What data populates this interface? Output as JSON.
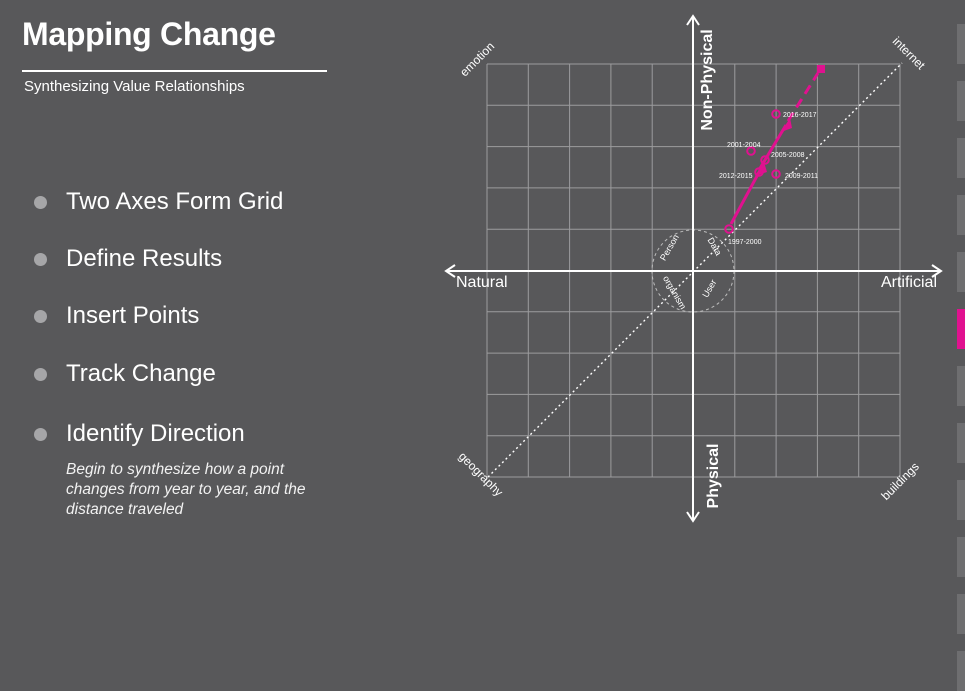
{
  "slide": {
    "title": "Mapping Change",
    "subtitle": "Synthesizing Value Relationships"
  },
  "bullets": [
    {
      "label": "Two Axes Form Grid"
    },
    {
      "label": "Define Results"
    },
    {
      "label": "Insert Points"
    },
    {
      "label": "Track Change"
    },
    {
      "label": "Identify Direction"
    }
  ],
  "note": "Begin to synthesize how a point changes from year to year, and the distance traveled",
  "diagram": {
    "axes": {
      "top": "Non-Physical",
      "bottom": "Physical",
      "left": "Natural",
      "right": "Artificial"
    },
    "corners": {
      "top_left": "emotion",
      "top_right": "internet",
      "bottom_left": "geography",
      "bottom_right": "buildings"
    },
    "center_labels": {
      "person": "Person",
      "data": "Data",
      "organism": "organism",
      "user": "User"
    },
    "points": [
      {
        "label": "1997-2000"
      },
      {
        "label": "2001-2004"
      },
      {
        "label": "2005-2008"
      },
      {
        "label": "2009-2011"
      },
      {
        "label": "2012-2015"
      },
      {
        "label": "2016-2017"
      }
    ],
    "accent_color": "#e0118f"
  },
  "nav": {
    "tab_count": 12,
    "active_tab": 5
  }
}
